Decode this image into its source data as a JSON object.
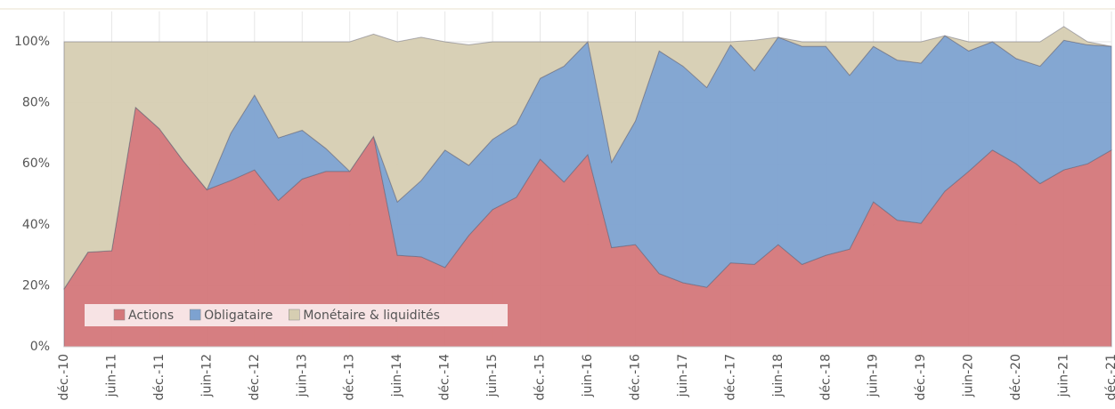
{
  "chart_data": {
    "type": "stacked_area",
    "categories": [
      "déc.-10",
      null,
      "juin-11",
      null,
      "déc.-11",
      null,
      "juin-12",
      null,
      "déc.-12",
      null,
      "juin-13",
      null,
      "déc.-13",
      null,
      "juin-14",
      null,
      "déc.-14",
      null,
      "juin-15",
      null,
      "déc.-15",
      null,
      "juin-16",
      null,
      "déc.-16",
      null,
      "juin-17",
      null,
      "déc.-17",
      null,
      "juin-18",
      null,
      "déc.-18",
      null,
      "juin-19",
      null,
      "déc.-19",
      null,
      "juin-20",
      null,
      "déc.-20",
      null,
      "juin-21",
      null,
      "déc.-21"
    ],
    "series": [
      {
        "name": "Actions",
        "color": "#d4777a",
        "values": [
          19,
          31,
          31.5,
          78.5,
          71.5,
          61,
          51.5,
          54.5,
          58,
          48,
          55,
          57.5,
          57.5,
          69,
          30,
          29.5,
          26,
          36.5,
          45,
          49,
          61.5,
          54,
          63,
          32.5,
          33.5,
          24,
          21,
          19.5,
          27.5,
          27,
          33.5,
          27,
          30,
          32,
          47.5,
          41.5,
          40.5,
          51,
          57.5,
          64.5,
          60,
          53.5,
          58,
          60,
          64.5
        ]
      },
      {
        "name": "Obligataire",
        "color": "#7da2d0",
        "values": [
          0,
          0,
          0,
          0,
          0,
          0,
          0,
          15.5,
          24.5,
          20.5,
          16,
          7.5,
          0,
          0,
          17.5,
          25,
          38.5,
          23,
          23,
          24,
          26.5,
          38,
          37,
          28,
          40.5,
          73,
          71,
          65.5,
          71.5,
          63.5,
          68,
          71.5,
          68.5,
          57,
          51,
          52.5,
          52.5,
          51,
          39.5,
          35.5,
          34.5,
          38.5,
          42.5,
          39,
          34
        ]
      },
      {
        "name": "Monétaire & liquidités",
        "color": "#d6ceb2",
        "values": [
          81,
          69,
          68.5,
          21.5,
          28.5,
          39,
          48.5,
          30,
          17.5,
          31.5,
          29,
          35,
          42.5,
          33.5,
          52.5,
          47,
          35.5,
          39.5,
          32,
          27,
          12,
          8,
          0,
          39.5,
          26,
          3,
          8,
          15,
          1,
          10,
          0,
          1.5,
          1.5,
          11,
          1.5,
          6,
          7,
          0,
          3,
          0,
          5.5,
          8,
          4.5,
          1,
          0
        ]
      }
    ],
    "ylim": [
      0,
      110
    ],
    "yticks": [
      {
        "value": 0,
        "label": "0%"
      },
      {
        "value": 20,
        "label": "20%"
      },
      {
        "value": 40,
        "label": "40%"
      },
      {
        "value": 60,
        "label": "60%"
      },
      {
        "value": 80,
        "label": "80%"
      },
      {
        "value": 100,
        "label": "100%"
      }
    ],
    "grid": true,
    "legend": "lower left"
  }
}
